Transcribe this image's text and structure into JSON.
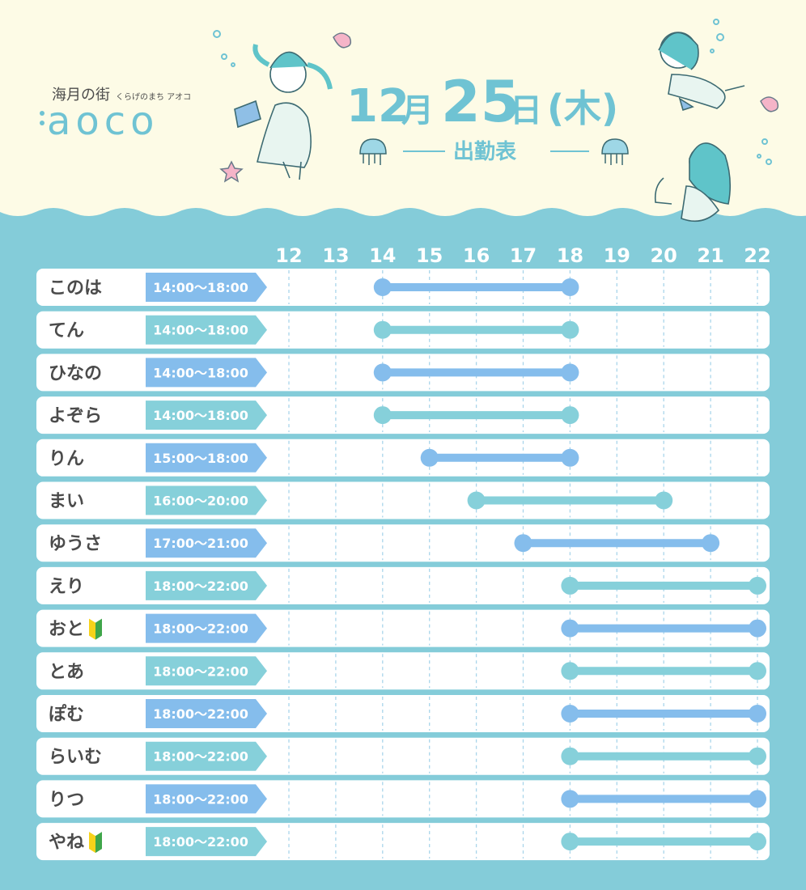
{
  "brand": {
    "name_jp": "海月の街",
    "name_kana": "くらげのまち アオコ",
    "logo": "aoco"
  },
  "header": {
    "date_month": "12",
    "date_month_char": "月",
    "date_day": "25",
    "date_day_char": "日",
    "weekday": "(木)",
    "subtitle": "出勤表"
  },
  "colors": {
    "background_top": "#fdfbe6",
    "water": "#84ccd9",
    "bar_blue": "#85bdec",
    "bar_teal": "#86d0da",
    "row_bg": "#ffffff",
    "text": "#4b4b4b"
  },
  "chart_data": {
    "type": "bar",
    "orientation": "horizontal-range",
    "x_ticks": [
      "12",
      "13",
      "14",
      "15",
      "16",
      "17",
      "18",
      "19",
      "20",
      "21",
      "22"
    ],
    "xlim": [
      12,
      22
    ],
    "grid": true,
    "rows": [
      {
        "name": "このは",
        "label": "14:00～18:00",
        "start": 14,
        "end": 18,
        "color": "blue",
        "beginner": false
      },
      {
        "name": "てん",
        "label": "14:00～18:00",
        "start": 14,
        "end": 18,
        "color": "teal",
        "beginner": false
      },
      {
        "name": "ひなの",
        "label": "14:00～18:00",
        "start": 14,
        "end": 18,
        "color": "blue",
        "beginner": false
      },
      {
        "name": "よぞら",
        "label": "14:00～18:00",
        "start": 14,
        "end": 18,
        "color": "teal",
        "beginner": false
      },
      {
        "name": "りん",
        "label": "15:00～18:00",
        "start": 15,
        "end": 18,
        "color": "blue",
        "beginner": false
      },
      {
        "name": "まい",
        "label": "16:00～20:00",
        "start": 16,
        "end": 20,
        "color": "teal",
        "beginner": false
      },
      {
        "name": "ゆうさ",
        "label": "17:00～21:00",
        "start": 17,
        "end": 21,
        "color": "blue",
        "beginner": false
      },
      {
        "name": "えり",
        "label": "18:00～22:00",
        "start": 18,
        "end": 22,
        "color": "teal",
        "beginner": false
      },
      {
        "name": "おと",
        "label": "18:00～22:00",
        "start": 18,
        "end": 22,
        "color": "blue",
        "beginner": true
      },
      {
        "name": "とあ",
        "label": "18:00～22:00",
        "start": 18,
        "end": 22,
        "color": "teal",
        "beginner": false
      },
      {
        "name": "ぽむ",
        "label": "18:00～22:00",
        "start": 18,
        "end": 22,
        "color": "blue",
        "beginner": false
      },
      {
        "name": "らいむ",
        "label": "18:00～22:00",
        "start": 18,
        "end": 22,
        "color": "teal",
        "beginner": false
      },
      {
        "name": "りつ",
        "label": "18:00～22:00",
        "start": 18,
        "end": 22,
        "color": "blue",
        "beginner": false
      },
      {
        "name": "やね",
        "label": "18:00～22:00",
        "start": 18,
        "end": 22,
        "color": "teal",
        "beginner": true
      }
    ]
  }
}
